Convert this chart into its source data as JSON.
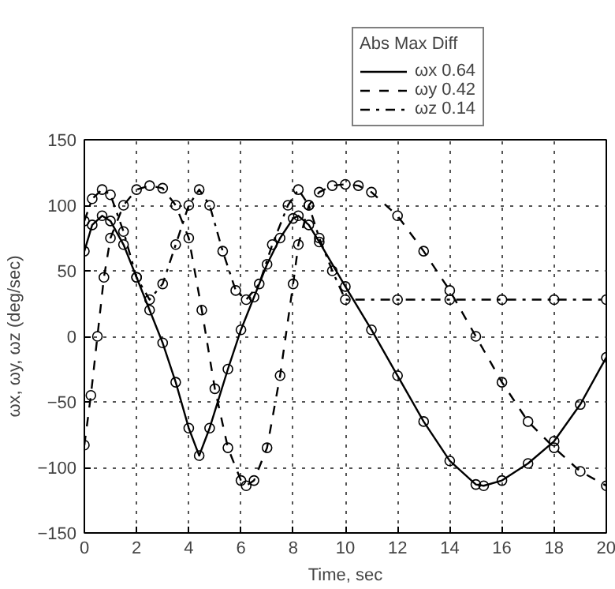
{
  "chart_data": {
    "type": "line",
    "xlabel": "Time, sec",
    "ylabel": "ωx, ωy, ωz (deg/sec)",
    "legend_title": "Abs Max Diff",
    "legend": "top",
    "grid": true,
    "marker": "circle",
    "xlim": [
      0,
      20
    ],
    "xticks": [
      0,
      2,
      4,
      6,
      8,
      10,
      12,
      14,
      16,
      18,
      20
    ],
    "ylim": [
      -150,
      150
    ],
    "yticks": [
      -150,
      -100,
      -50,
      0,
      50,
      100,
      150
    ],
    "series": [
      {
        "name": "ωx 0.64",
        "color": "#000000",
        "line_style": "solid",
        "x": [
          0,
          0.3,
          0.68,
          1,
          1.5,
          2,
          2.5,
          3,
          3.5,
          4,
          4.4,
          4.8,
          5.5,
          6,
          6.5,
          7,
          7.5,
          8,
          8.2,
          8.6,
          9,
          10,
          11,
          12,
          13,
          14,
          15,
          15.3,
          16,
          17,
          18,
          19,
          20
        ],
        "values": [
          65,
          85,
          92,
          88,
          70,
          45,
          20,
          -5,
          -35,
          -70,
          -91,
          -70,
          -25,
          5,
          30,
          55,
          75,
          90,
          92,
          85,
          72,
          38,
          5,
          -30,
          -65,
          -95,
          -113,
          -114,
          -110,
          -97,
          -80,
          -52,
          -16
        ]
      },
      {
        "name": "ωy 0.42",
        "color": "#000000",
        "line_style": "dashed",
        "x": [
          0,
          0.25,
          0.5,
          0.75,
          1,
          1.5,
          2,
          2.5,
          3,
          3.5,
          4,
          4.5,
          5,
          5.5,
          6,
          6.2,
          6.5,
          7,
          7.5,
          8,
          8.2,
          8.6,
          9,
          9.5,
          10,
          10.5,
          11,
          12,
          13,
          14,
          15,
          16,
          17,
          18,
          19,
          20
        ],
        "values": [
          -83,
          -45,
          0,
          45,
          75,
          100,
          112,
          115,
          113,
          100,
          75,
          20,
          -40,
          -85,
          -110,
          -114,
          -110,
          -85,
          -30,
          40,
          70,
          100,
          110,
          115,
          116,
          115,
          110,
          92,
          65,
          35,
          0,
          -35,
          -65,
          -85,
          -103,
          -114
        ]
      },
      {
        "name": "ωz 0.14",
        "color": "#000000",
        "line_style": "dashdot",
        "x": [
          0,
          0.3,
          0.68,
          1,
          1.5,
          2,
          2.5,
          3,
          3.5,
          4,
          4.4,
          4.8,
          5.3,
          5.8,
          6.2,
          6.7,
          7.2,
          7.8,
          8.2,
          8.6,
          9,
          9.5,
          10,
          12,
          14,
          16,
          18,
          20
        ],
        "values": [
          88,
          105,
          112,
          108,
          80,
          45,
          28,
          40,
          70,
          100,
          112,
          100,
          65,
          35,
          28,
          40,
          70,
          100,
          112,
          100,
          75,
          50,
          28,
          28,
          28,
          28,
          28,
          28
        ]
      }
    ]
  }
}
